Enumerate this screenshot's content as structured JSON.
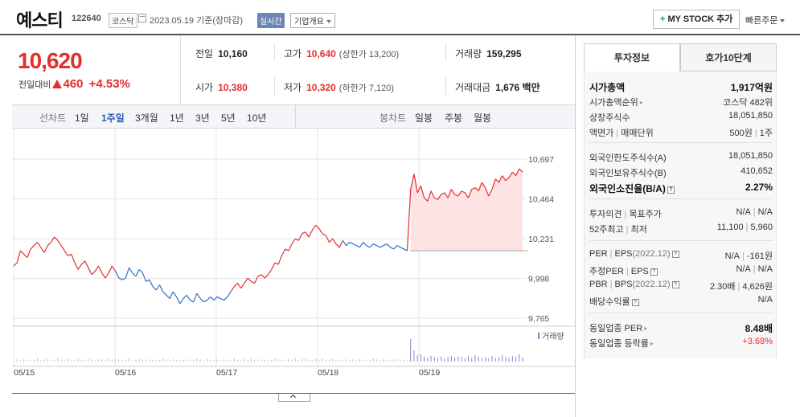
{
  "header": {
    "name": "예스티",
    "code": "122640",
    "market": "코스닥",
    "date": "2023.05.19 기준(장마감)",
    "realtime": "실시간",
    "corp_info": "기업개요",
    "mystock": "MY STOCK 추가",
    "quick_order": "빠른주문"
  },
  "price": {
    "current": "10,620",
    "change_label": "전일대비",
    "change": "460",
    "change_pct": "+4.53%"
  },
  "stats": {
    "prev_label": "전일",
    "prev": "10,160",
    "high_label": "고가",
    "high": "10,640",
    "upper_limit": "(상한가 13,200)",
    "volume_label": "거래량",
    "volume": "159,295",
    "open_label": "시가",
    "open": "10,380",
    "low_label": "저가",
    "low": "10,320",
    "lower_limit": "(하한가 7,120)",
    "amount_label": "거래대금",
    "amount": "1,676 백만"
  },
  "toolbar": {
    "line_label": "선차트",
    "periods": [
      "1일",
      "1주일",
      "3개월",
      "1년",
      "3년",
      "5년",
      "10년"
    ],
    "active_period": "1주일",
    "candle_label": "봉차트",
    "candles": [
      "일봉",
      "주봉",
      "월봉"
    ]
  },
  "colors": {
    "up": "#e52d2d",
    "down": "#2f72c9",
    "accent": "#2a5db0"
  },
  "chart_data": {
    "type": "line",
    "y_ticks": [
      "10,697",
      "10,464",
      "10,231",
      "9,998",
      "9,765"
    ],
    "ylim": [
      9765,
      10697
    ],
    "x_ticks": [
      "05/15",
      "05/16",
      "05/17",
      "05/18",
      "05/19"
    ],
    "reference_price": 10160,
    "volume_legend": "거래량",
    "series": [
      {
        "values": [
          10070,
          10090,
          10160,
          10140,
          10120,
          10170,
          10190,
          10210,
          10180,
          10150,
          10190,
          10210,
          10240,
          10220,
          10190,
          10160,
          10130,
          10140,
          10090,
          10050,
          10080,
          10100,
          10060,
          10020,
          10040,
          10070,
          10030,
          10000,
          10030,
          10070,
          10040,
          10000,
          9990,
          10000,
          10060,
          10030,
          10010,
          10050,
          10030,
          9980,
          9990,
          9950,
          9930,
          9960,
          9920,
          9900,
          9880,
          9920,
          9890,
          9850,
          9880,
          9900,
          9870,
          9860,
          9910,
          9880,
          9860,
          9870,
          9890,
          9870,
          9890,
          9880,
          9870,
          9890,
          9920,
          9950,
          9970,
          9940,
          9970,
          10000,
          9980,
          9970,
          10010,
          10020,
          10000,
          10020,
          10050,
          10090,
          10080,
          10130,
          10170,
          10160,
          10200,
          10230,
          10220,
          10260,
          10270,
          10240,
          10280,
          10310,
          10290,
          10260,
          10250,
          10210,
          10230,
          10200,
          10180,
          10220,
          10190,
          10210,
          10200,
          10190,
          10180,
          10210,
          10190,
          10180,
          10200,
          10190,
          10180,
          10190,
          10200,
          10180,
          10170,
          10190,
          10180,
          10170,
          10160,
          10520,
          10610,
          10500,
          10540,
          10470,
          10450,
          10510,
          10470,
          10460,
          10490,
          10500,
          10470,
          10520,
          10490,
          10480,
          10510,
          10500,
          10470,
          10520,
          10530,
          10510,
          10560,
          10530,
          10480,
          10520,
          10580,
          10560,
          10600,
          10570,
          10590,
          10620,
          10600,
          10640,
          10620
        ]
      }
    ],
    "volume": [
      2,
      3,
      2,
      4,
      3,
      2,
      3,
      5,
      2,
      3,
      4,
      2,
      3,
      6,
      3,
      2,
      4,
      3,
      2,
      5,
      3,
      2,
      4,
      3,
      2,
      3,
      4,
      2,
      5,
      3,
      4,
      3,
      2,
      3,
      5,
      2,
      3,
      4,
      3,
      2,
      4,
      3,
      2,
      3,
      5,
      3,
      2,
      4,
      3,
      2,
      3,
      4,
      2,
      3,
      5,
      3,
      2,
      4,
      3,
      2,
      3,
      2,
      4,
      3,
      2,
      5,
      3,
      2,
      4,
      3,
      6,
      3,
      2,
      4,
      3,
      2,
      3,
      5,
      4,
      3,
      2,
      4,
      3,
      5,
      2,
      4,
      6,
      3,
      2,
      4,
      3,
      5,
      3,
      2,
      4,
      3,
      2,
      3,
      4,
      2,
      3,
      2,
      4,
      3,
      2,
      3,
      5,
      3,
      2,
      4,
      3,
      2,
      3,
      4,
      2,
      3,
      2,
      36,
      18,
      10,
      12,
      8,
      6,
      9,
      7,
      6,
      8,
      5,
      7,
      9,
      6,
      8,
      7,
      5,
      9,
      6,
      10,
      8,
      6,
      7,
      5,
      9,
      6,
      8,
      11,
      7,
      6,
      9,
      8,
      12,
      7
    ]
  },
  "panel": {
    "tab_info": "투자정보",
    "tab_hoga": "호가10단계",
    "rows": {
      "mcap_l": "시가총액",
      "mcap_r": "1,917억원",
      "mrank_l": "시가총액순위",
      "mrank_r": "코스닥 482위",
      "shares_l": "상장주식수",
      "shares_r": "18,051,850",
      "par_l": "액면가",
      "par_l2": "매매단위",
      "par_r": "500원",
      "par_r2": "1주",
      "flim_l": "외국인한도주식수(A)",
      "flim_r": "18,051,850",
      "fhold_l": "외국인보유주식수(B)",
      "fhold_r": "410,652",
      "fexh_l": "외국인소진율(B/A)",
      "fexh_r": "2.27%",
      "opin_l": "투자의견",
      "opin_l2": "목표주가",
      "opin_r": "N/A",
      "opin_r2": "N/A",
      "w52_l": "52주최고",
      "w52_l2": "최저",
      "w52_r": "11,100",
      "w52_r2": "5,960",
      "per_l": "PER",
      "per_l2": "EPS",
      "per_l2b": "(2022.12)",
      "per_r": "N/A",
      "per_r2": "-161원",
      "eper_l": "추정PER",
      "eper_l2": "EPS",
      "eper_r": "N/A",
      "eper_r2": "N/A",
      "pbr_l": "PBR",
      "pbr_l2": "BPS",
      "pbr_l2b": "(2022.12)",
      "pbr_r": "2.30배",
      "pbr_r2": "4,626원",
      "div_l": "배당수익률",
      "div_r": "N/A",
      "iper_l": "동일업종 PER",
      "iper_r": "8.48배",
      "irate_l": "동일업종 등락률",
      "irate_r": "+3.68%"
    }
  }
}
